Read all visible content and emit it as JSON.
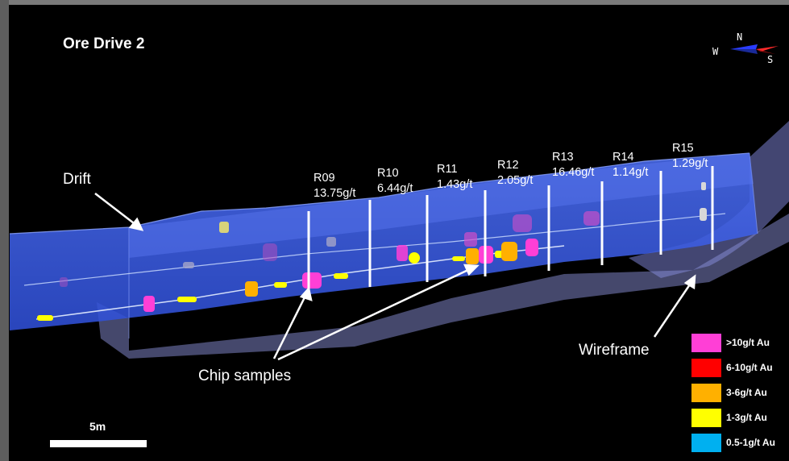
{
  "title": "Ore Drive 2",
  "callouts": {
    "drift": "Drift",
    "chip_samples": "Chip samples",
    "wireframe": "Wireframe"
  },
  "rings": [
    {
      "id": "R09",
      "grade": "13.75g/t"
    },
    {
      "id": "R10",
      "grade": "6.44g/t"
    },
    {
      "id": "R11",
      "grade": "1.43g/t"
    },
    {
      "id": "R12",
      "grade": "2.05g/t"
    },
    {
      "id": "R13",
      "grade": "16.46g/t"
    },
    {
      "id": "R14",
      "grade": "1.14g/t"
    },
    {
      "id": "R15",
      "grade": "1.29g/t"
    }
  ],
  "compass": {
    "north": "N",
    "west": "W",
    "south": "S"
  },
  "legend": [
    {
      "label": ">10g/t Au",
      "color": "#ff3fd6"
    },
    {
      "label": "6-10g/t Au",
      "color": "#ff0000"
    },
    {
      "label": "3-6g/t Au",
      "color": "#ffb000"
    },
    {
      "label": "1-3g/t Au",
      "color": "#ffff00"
    },
    {
      "label": "0.5-1g/t Au",
      "color": "#00b0f0"
    }
  ],
  "scale_bar": {
    "label": "5m"
  },
  "colors": {
    "drift_fill": "#3c5ee6",
    "wireframe_fill": "#8a8fd8",
    "background": "#000000"
  }
}
